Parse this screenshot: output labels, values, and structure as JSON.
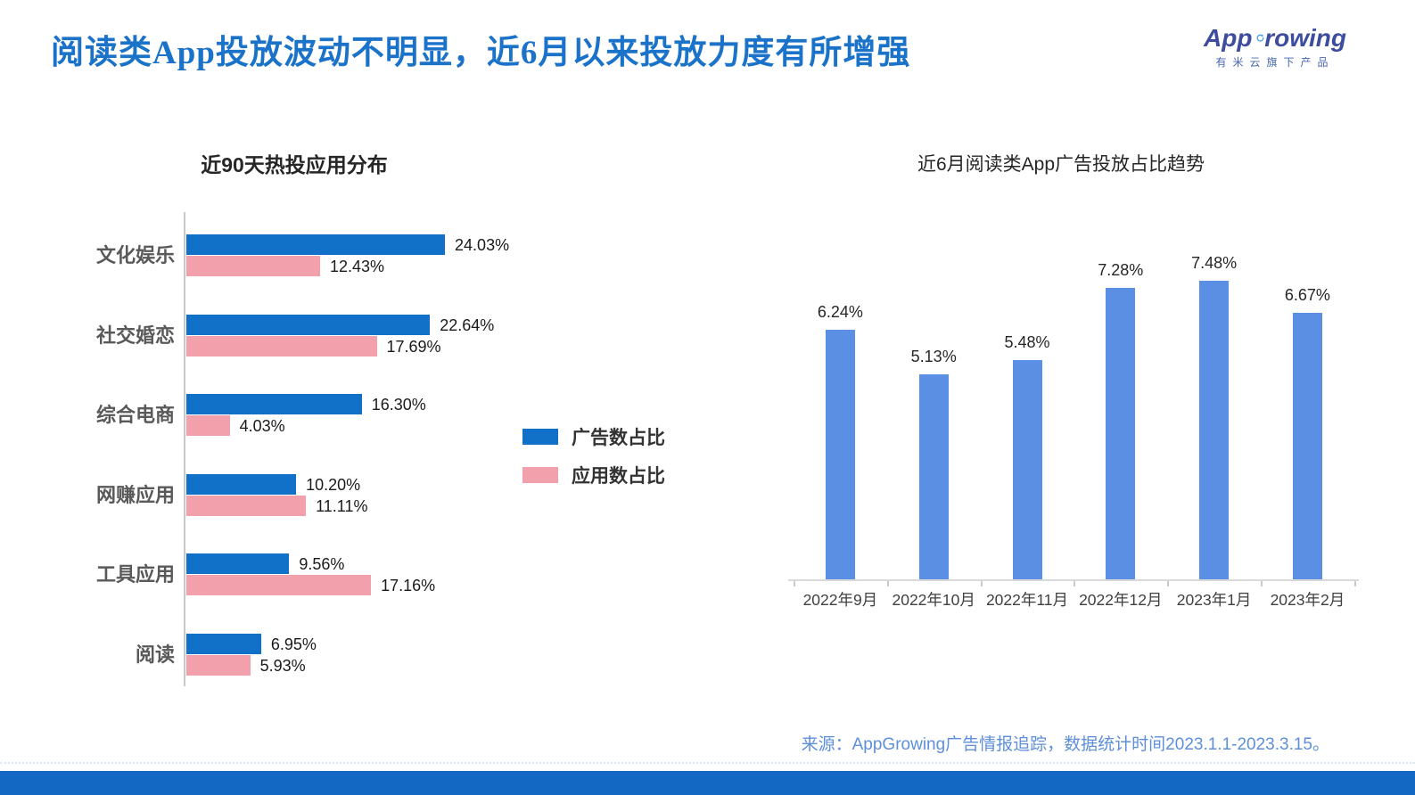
{
  "page": {
    "title": "阅读类App投放波动不明显，近6月以来投放力度有所增强",
    "source_note": "来源：AppGrowing广告情报追踪，数据统计时间2023.1.1-2023.3.15。"
  },
  "logo": {
    "brand_app": "App",
    "brand_growing": "rowing",
    "tagline": "有米云旗下产品"
  },
  "colors": {
    "title_blue": "#1A72C9",
    "bar_blue": "#1170C7",
    "bar_pink": "#F2A0AC",
    "trend_bar_blue": "#5B8FE4",
    "axis_gray": "#C9C9C9",
    "footer_blue": "#5E8FDB",
    "bottom_bar_blue": "#1368C4",
    "logo_indigo": "#3D4C9E",
    "logo_arrow_blue": "#4D9FE8"
  },
  "chart_data": [
    {
      "type": "bar",
      "orientation": "horizontal",
      "title": "近90天热投应用分布",
      "categories": [
        "文化娱乐",
        "社交婚恋",
        "综合电商",
        "网赚应用",
        "工具应用",
        "阅读"
      ],
      "series": [
        {
          "name": "广告数占比",
          "color": "#1170C7",
          "values": [
            24.03,
            22.64,
            16.3,
            10.2,
            9.56,
            6.95
          ],
          "labels": [
            "24.03%",
            "22.64%",
            "16.30%",
            "10.20%",
            "9.56%",
            "6.95%"
          ]
        },
        {
          "name": "应用数占比",
          "color": "#F2A0AC",
          "values": [
            12.43,
            17.69,
            4.03,
            11.11,
            17.16,
            5.93
          ],
          "labels": [
            "12.43%",
            "17.69%",
            "4.03%",
            "11.11%",
            "17.16%",
            "5.93%"
          ]
        }
      ],
      "value_suffix": "%",
      "xlim": [
        0,
        26
      ],
      "grid": false,
      "legend_position": "right-middle"
    },
    {
      "type": "bar",
      "orientation": "vertical",
      "title": "近6月阅读类App广告投放占比趋势",
      "categories": [
        "2022年9月",
        "2022年10月",
        "2022年11月",
        "2022年12月",
        "2023年1月",
        "2023年2月"
      ],
      "values": [
        6.24,
        5.13,
        5.48,
        7.28,
        7.48,
        6.67
      ],
      "labels": [
        "6.24%",
        "5.13%",
        "5.48%",
        "7.28%",
        "7.48%",
        "6.67%"
      ],
      "value_suffix": "%",
      "ylim": [
        0,
        8
      ],
      "grid": false,
      "legend_position": "none"
    }
  ]
}
